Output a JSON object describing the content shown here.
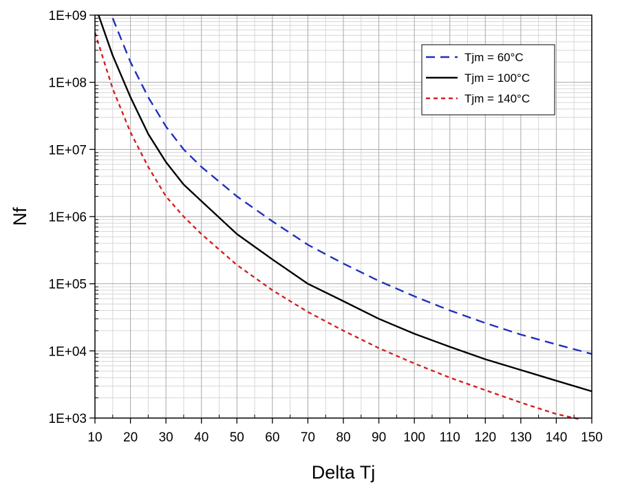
{
  "chart_data": {
    "type": "line",
    "title": "",
    "xlabel": "Delta Tj",
    "ylabel": "Nf",
    "xlim": [
      10,
      150
    ],
    "ylim": [
      1000,
      1000000000
    ],
    "yscale": "log",
    "grid": true,
    "legend_position": "top-right",
    "x_ticks": [
      10,
      20,
      30,
      40,
      50,
      60,
      70,
      80,
      90,
      100,
      110,
      120,
      130,
      140,
      150
    ],
    "x_tick_labels": [
      "10",
      "20",
      "30",
      "40",
      "50",
      "60",
      "70",
      "80",
      "90",
      "100",
      "110",
      "120",
      "130",
      "140",
      "150"
    ],
    "y_ticks": [
      1000,
      10000,
      100000,
      1000000,
      10000000,
      100000000,
      1000000000
    ],
    "y_tick_labels": [
      "1E+03",
      "1E+04",
      "1E+05",
      "1E+06",
      "1E+07",
      "1E+08",
      "1E+09"
    ],
    "series": [
      {
        "name": "Tjm = 60°C",
        "color": "#1f2fbf",
        "dash": "long-dash",
        "x": [
          15,
          20,
          25,
          30,
          35,
          40,
          50,
          60,
          70,
          80,
          90,
          100,
          110,
          120,
          130,
          140,
          150
        ],
        "y": [
          900000000,
          200000000,
          60000000,
          22000000,
          10000000,
          5500000,
          2000000,
          850000,
          380000,
          200000,
          110000,
          65000,
          40000,
          26000,
          17500,
          12500,
          9000
        ]
      },
      {
        "name": "Tjm = 100°C",
        "color": "#000000",
        "dash": "solid",
        "x": [
          11,
          15,
          20,
          25,
          30,
          35,
          40,
          50,
          60,
          70,
          80,
          90,
          100,
          110,
          120,
          130,
          140,
          150
        ],
        "y": [
          1000000000,
          250000000,
          60000000,
          17000000,
          6500000,
          3000000,
          1700000,
          550000,
          230000,
          100000,
          55000,
          30000,
          18000,
          11500,
          7500,
          5200,
          3600,
          2500
        ]
      },
      {
        "name": "Tjm = 140°C",
        "color": "#d42020",
        "dash": "short-dash",
        "x": [
          10,
          15,
          20,
          25,
          30,
          35,
          40,
          50,
          60,
          70,
          80,
          90,
          100,
          110,
          120,
          130,
          140,
          147
        ],
        "y": [
          550000000,
          80000000,
          18000000,
          5500000,
          2000000,
          1000000,
          550000,
          190000,
          80000,
          38000,
          20000,
          11000,
          6500,
          4000,
          2600,
          1700,
          1150,
          950
        ]
      }
    ]
  }
}
